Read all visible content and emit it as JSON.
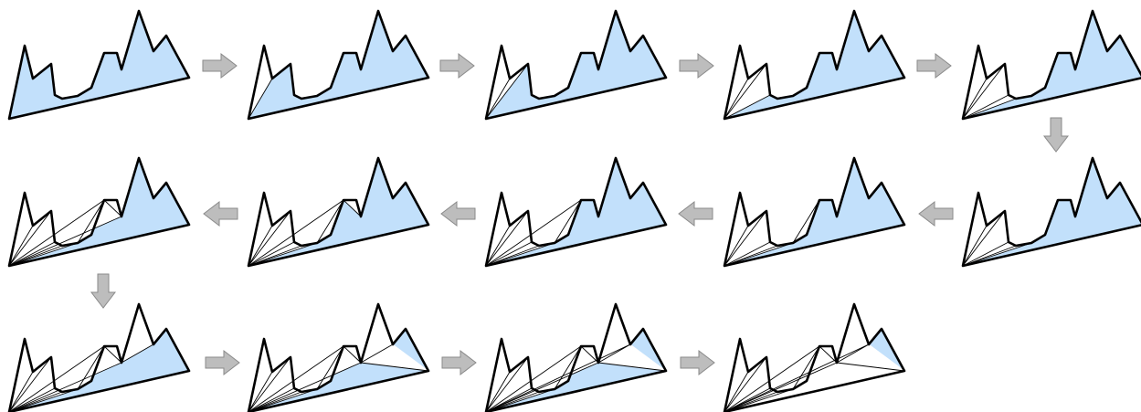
{
  "figure": {
    "description_semantic": "triangulation-sequence",
    "colors": {
      "remaining_region": "#c2e0fb",
      "outline": "#000000",
      "arrow": "#bdbdbd"
    },
    "polygon_vertex_count": 14,
    "steps": [
      {
        "step": 1,
        "diagonals": []
      },
      {
        "step": 2,
        "diagonals": [
          [
            0,
            2
          ]
        ]
      },
      {
        "step": 3,
        "diagonals": [
          [
            0,
            2
          ],
          [
            0,
            3
          ]
        ]
      },
      {
        "step": 4,
        "diagonals": [
          [
            0,
            2
          ],
          [
            0,
            3
          ],
          [
            0,
            4
          ]
        ]
      },
      {
        "step": 5,
        "diagonals": [
          [
            0,
            2
          ],
          [
            0,
            3
          ],
          [
            0,
            4
          ],
          [
            0,
            5
          ]
        ]
      },
      {
        "step": 6,
        "diagonals": [
          [
            0,
            2
          ],
          [
            0,
            3
          ],
          [
            0,
            4
          ],
          [
            0,
            5
          ],
          [
            0,
            6
          ]
        ]
      },
      {
        "step": 7,
        "diagonals": [
          [
            0,
            2
          ],
          [
            0,
            3
          ],
          [
            0,
            4
          ],
          [
            0,
            5
          ],
          [
            0,
            6
          ],
          [
            6,
            8
          ]
        ]
      },
      {
        "step": 8,
        "diagonals": [
          [
            0,
            2
          ],
          [
            0,
            3
          ],
          [
            0,
            4
          ],
          [
            0,
            5
          ],
          [
            0,
            6
          ],
          [
            6,
            8
          ],
          [
            0,
            8
          ]
        ]
      },
      {
        "step": 9,
        "diagonals": [
          [
            0,
            2
          ],
          [
            0,
            3
          ],
          [
            0,
            4
          ],
          [
            0,
            5
          ],
          [
            0,
            6
          ],
          [
            6,
            8
          ],
          [
            0,
            8
          ],
          [
            8,
            10
          ]
        ]
      },
      {
        "step": 10,
        "diagonals": [
          [
            0,
            2
          ],
          [
            0,
            3
          ],
          [
            0,
            4
          ],
          [
            0,
            5
          ],
          [
            0,
            6
          ],
          [
            6,
            8
          ],
          [
            0,
            8
          ],
          [
            8,
            10
          ],
          [
            0,
            10
          ]
        ]
      },
      {
        "step": 11,
        "diagonals": [
          [
            0,
            2
          ],
          [
            0,
            3
          ],
          [
            0,
            4
          ],
          [
            0,
            5
          ],
          [
            0,
            6
          ],
          [
            6,
            8
          ],
          [
            0,
            8
          ],
          [
            8,
            10
          ],
          [
            0,
            10
          ],
          [
            10,
            12
          ]
        ]
      },
      {
        "step": 12,
        "diagonals": [
          [
            0,
            2
          ],
          [
            0,
            3
          ],
          [
            0,
            4
          ],
          [
            0,
            5
          ],
          [
            0,
            6
          ],
          [
            6,
            8
          ],
          [
            0,
            8
          ],
          [
            8,
            10
          ],
          [
            0,
            10
          ],
          [
            10,
            12
          ],
          [
            10,
            13
          ]
        ]
      },
      {
        "step": 13,
        "diagonals": [
          [
            0,
            2
          ],
          [
            0,
            3
          ],
          [
            0,
            4
          ],
          [
            0,
            5
          ],
          [
            0,
            6
          ],
          [
            6,
            8
          ],
          [
            0,
            8
          ],
          [
            8,
            10
          ],
          [
            0,
            10
          ],
          [
            10,
            12
          ],
          [
            10,
            13
          ],
          [
            0,
            12
          ]
        ]
      },
      {
        "step": 14,
        "diagonals": [
          [
            0,
            2
          ],
          [
            0,
            3
          ],
          [
            0,
            4
          ],
          [
            0,
            5
          ],
          [
            0,
            6
          ],
          [
            6,
            8
          ],
          [
            0,
            8
          ],
          [
            8,
            10
          ],
          [
            0,
            10
          ],
          [
            10,
            12
          ],
          [
            10,
            13
          ],
          [
            0,
            12
          ],
          [
            0,
            13
          ]
        ]
      }
    ],
    "arrows": [
      {
        "from": 1,
        "to": 2,
        "direction": "right"
      },
      {
        "from": 2,
        "to": 3,
        "direction": "right"
      },
      {
        "from": 3,
        "to": 4,
        "direction": "right"
      },
      {
        "from": 4,
        "to": 5,
        "direction": "right"
      },
      {
        "from": 5,
        "to": 6,
        "direction": "down"
      },
      {
        "from": 6,
        "to": 7,
        "direction": "left"
      },
      {
        "from": 7,
        "to": 8,
        "direction": "left"
      },
      {
        "from": 8,
        "to": 9,
        "direction": "left"
      },
      {
        "from": 9,
        "to": 10,
        "direction": "left"
      },
      {
        "from": 10,
        "to": 11,
        "direction": "down"
      },
      {
        "from": 11,
        "to": 12,
        "direction": "right"
      },
      {
        "from": 12,
        "to": 13,
        "direction": "right"
      },
      {
        "from": 13,
        "to": 14,
        "direction": "right"
      }
    ]
  }
}
